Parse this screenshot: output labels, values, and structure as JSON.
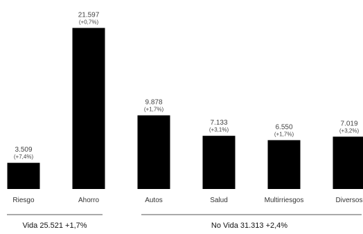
{
  "chart_data": {
    "type": "bar",
    "title": "",
    "xlabel": "",
    "ylabel": "",
    "ylim": [
      0,
      22000
    ],
    "grid": false,
    "legend": "none",
    "bar_color": "#000000",
    "categories": [
      "Riesgo",
      "Ahorro",
      "Autos",
      "Salud",
      "Multirriesgos",
      "Diversos"
    ],
    "values": [
      3509,
      21597,
      9878,
      7133,
      6550,
      7019
    ],
    "value_labels": [
      "3.509",
      "21.597",
      "9.878",
      "7.133",
      "6.550",
      "7.019"
    ],
    "change_labels": [
      "(+7,4%)",
      "(+0,7%)",
      "(+1,7%)",
      "(+3,1%)",
      "(+1,7%)",
      "(+3,2%)"
    ],
    "groups": [
      {
        "label": "Vida  25.521  +1,7%",
        "categories": [
          "Riesgo",
          "Ahorro"
        ]
      },
      {
        "label": "No Vida  31.313  +2,4%",
        "categories": [
          "Autos",
          "Salud",
          "Multirriesgos",
          "Diversos"
        ]
      }
    ]
  }
}
